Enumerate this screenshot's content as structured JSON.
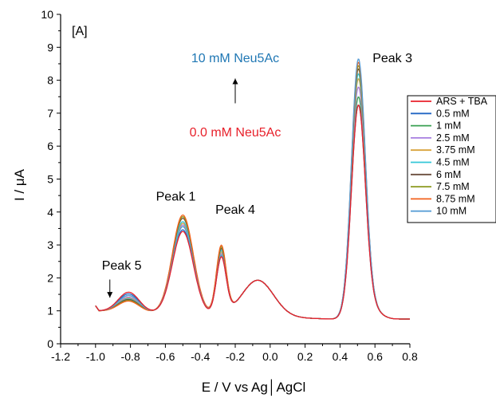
{
  "chart_data": {
    "type": "line",
    "panel_label": "[A]",
    "xlabel": "E / V vs Ag│AgCl",
    "ylabel": "I / μA",
    "xlim": [
      -1.2,
      0.8
    ],
    "ylim": [
      0,
      10
    ],
    "xticks": [
      "-1.2",
      "-1.0",
      "-0.8",
      "-0.6",
      "-0.4",
      "-0.2",
      "0.0",
      "0.2",
      "0.4",
      "0.6",
      "0.8"
    ],
    "yticks": [
      "0",
      "1",
      "2",
      "3",
      "4",
      "5",
      "6",
      "7",
      "8",
      "9",
      "10"
    ],
    "grid": false,
    "legend_position": "right",
    "annotations": [
      {
        "text": "Peak 1",
        "x": -0.54,
        "y": 4.35
      },
      {
        "text": "Peak 4",
        "x": -0.2,
        "y": 3.95
      },
      {
        "text": "Peak 3",
        "x": 0.7,
        "y": 8.55
      },
      {
        "text": "Peak 5",
        "x": -0.85,
        "y": 2.25
      },
      {
        "text": "10 mM Neu5Ac",
        "x": -0.2,
        "y": 8.55,
        "color": "#1f77b4"
      },
      {
        "text": "0.0 mM Neu5Ac",
        "x": -0.2,
        "y": 6.3,
        "color": "#e8212b"
      }
    ],
    "arrows": [
      {
        "x": -0.2,
        "y_from": 7.3,
        "y_to": 8.05
      },
      {
        "x": -0.918,
        "y_from": 1.95,
        "y_to": 1.4
      }
    ],
    "series": [
      {
        "name": "ARS + TBA",
        "color": "#e8212b",
        "peak3": 7.2,
        "peak1": 3.55,
        "peak4": 3.25,
        "peak5": 1.6
      },
      {
        "name": "0.5 mM",
        "color": "#2266c4",
        "peak3": 7.2,
        "peak1": 3.6,
        "peak4": 3.25,
        "peak5": 1.55
      },
      {
        "name": "1 mM",
        "color": "#3aa052",
        "peak3": 7.45,
        "peak1": 3.7,
        "peak4": 3.3,
        "peak5": 1.5
      },
      {
        "name": "2.5 mM",
        "color": "#a77fe0",
        "peak3": 7.75,
        "peak1": 3.75,
        "peak4": 3.35,
        "peak5": 1.45
      },
      {
        "name": "3.75 mM",
        "color": "#d9a33a",
        "peak3": 8.0,
        "peak1": 3.8,
        "peak4": 3.4,
        "peak5": 1.42
      },
      {
        "name": "4.5 mM",
        "color": "#35c8d8",
        "peak3": 8.15,
        "peak1": 3.85,
        "peak4": 3.45,
        "peak5": 1.4
      },
      {
        "name": "6 mM",
        "color": "#6b4e3d",
        "peak3": 8.3,
        "peak1": 3.95,
        "peak4": 3.5,
        "peak5": 1.38
      },
      {
        "name": "7.5 mM",
        "color": "#8c9a1e",
        "peak3": 8.4,
        "peak1": 4.0,
        "peak4": 3.55,
        "peak5": 1.35
      },
      {
        "name": "8.75 mM",
        "color": "#f2611c",
        "peak3": 8.5,
        "peak1": 4.05,
        "peak4": 3.6,
        "peak5": 1.33
      },
      {
        "name": "10 mM",
        "color": "#5b9fd6",
        "peak3": 8.6,
        "peak1": 3.7,
        "peak4": 3.3,
        "peak5": 1.5
      }
    ]
  }
}
